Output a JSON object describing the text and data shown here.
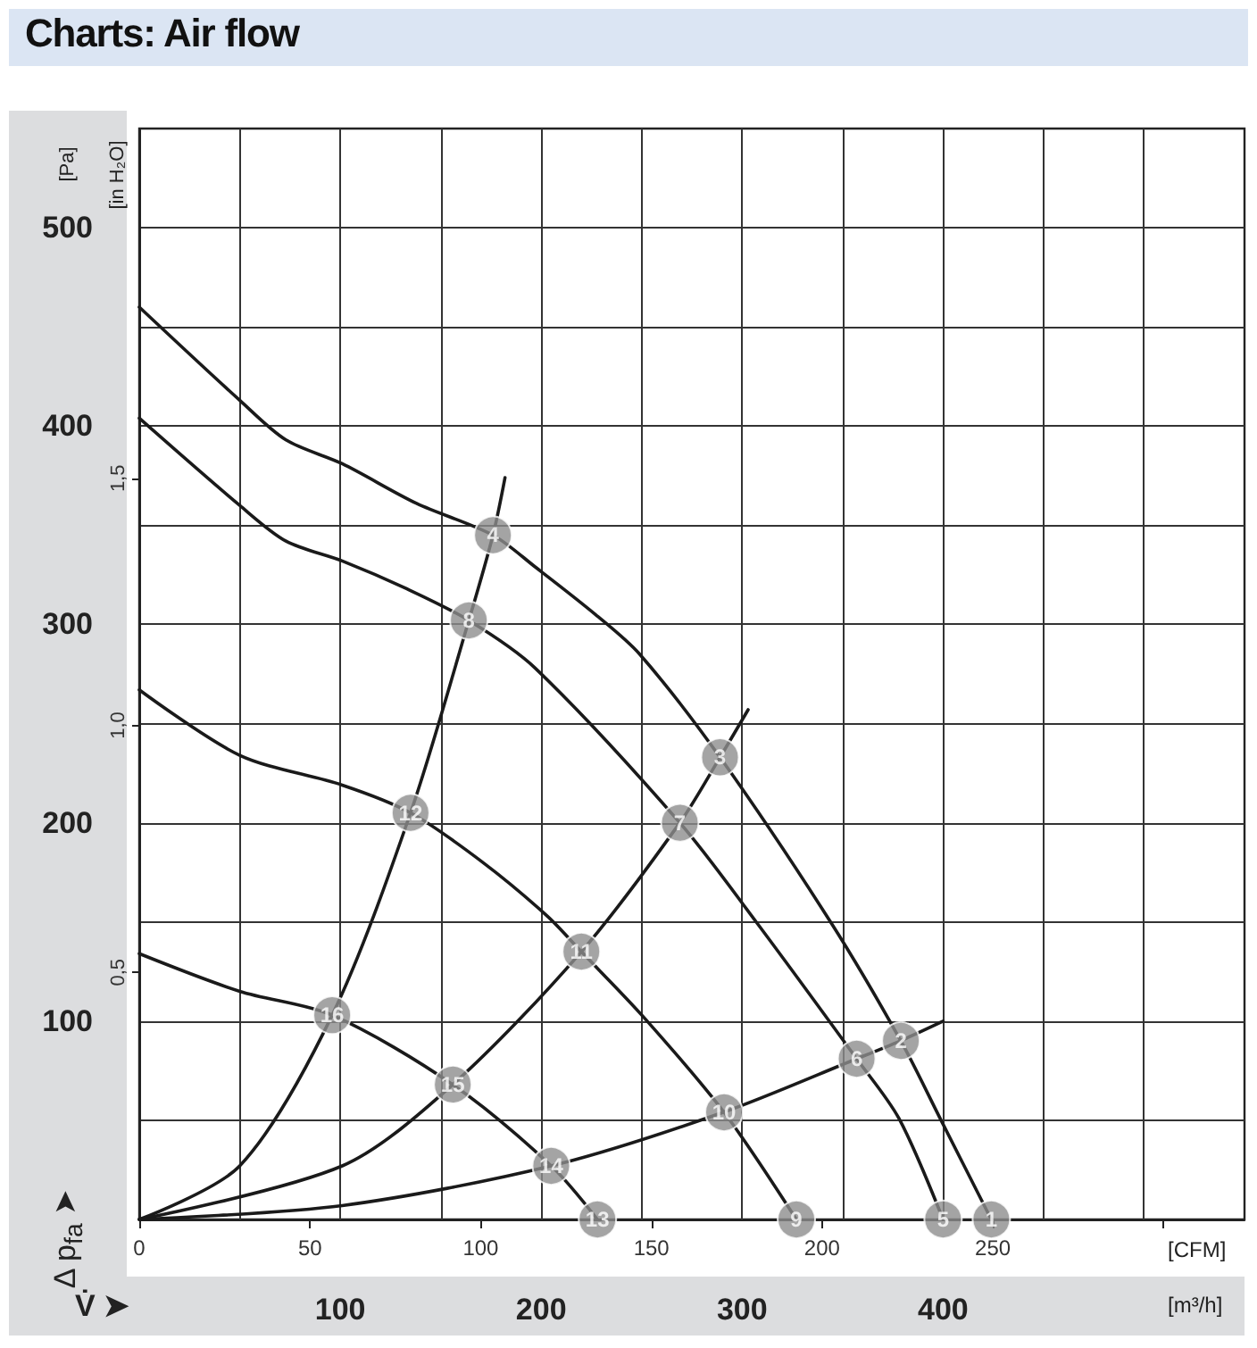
{
  "chart_data": {
    "type": "line",
    "title": "Charts: Air flow",
    "xlabel": "[m³/h]",
    "x2label": "[CFM]",
    "ylabel": "[Pa]",
    "y2label": "[in H₂O]",
    "xlim": [
      0,
      550
    ],
    "xticks": [
      {
        "value": 50,
        "label": null
      },
      100,
      {
        "value": 150,
        "label": null
      },
      200,
      {
        "value": 250,
        "label": null
      },
      300,
      {
        "value": 350,
        "label": null
      },
      400,
      {
        "value": 450,
        "label": null
      },
      {
        "value": 500,
        "label": null
      }
    ],
    "x2lim": [
      0,
      323.7
    ],
    "x2ticks": [
      0,
      50,
      100,
      150,
      200,
      250,
      {
        "value": 300,
        "label": null
      }
    ],
    "ylim": [
      0,
      550
    ],
    "yticks": [
      {
        "value": 50,
        "label": null
      },
      100,
      {
        "value": 150,
        "label": null
      },
      200,
      {
        "value": 250,
        "label": null
      },
      300,
      {
        "value": 350,
        "label": null
      },
      400,
      {
        "value": 450,
        "label": null
      },
      500
    ],
    "y2lim": [
      0,
      2.208
    ],
    "y2ticks": [
      {
        "value": 0.5,
        "label": "0,5"
      },
      {
        "value": 1.0,
        "label": "1,0"
      },
      {
        "value": 1.5,
        "label": "1,5"
      }
    ],
    "grid": true,
    "line_style": "solid",
    "series": [
      {
        "color": "#1a1a1a",
        "x": [
          0,
          50,
          73,
          101,
          138,
          176,
          197,
          227,
          249,
          289,
          344,
          379,
          399,
          424
        ],
        "values": [
          460,
          413,
          393,
          381,
          361,
          345,
          329,
          305,
          285,
          233,
          150,
          90,
          50,
          0
        ]
      },
      {
        "color": "#1a1a1a",
        "x": [
          0,
          50,
          73,
          101,
          133,
          164,
          197,
          269,
          307,
          357,
          378,
          400
        ],
        "values": [
          404,
          360,
          342,
          332,
          318,
          302,
          278,
          200,
          150,
          81,
          51,
          0
        ]
      },
      {
        "color": "#1a1a1a",
        "x": [
          0,
          50,
          101,
          135,
          171,
          203,
          220,
          251,
          291,
          327
        ],
        "values": [
          267,
          234,
          219,
          205,
          180,
          153,
          135,
          102,
          54,
          0
        ]
      },
      {
        "color": "#1a1a1a",
        "x": [
          0,
          50,
          96,
          156,
          205,
          228
        ],
        "values": [
          134,
          115,
          103,
          68,
          27,
          0
        ]
      },
      {
        "color": "#1a1a1a",
        "x": [
          0,
          50,
          96,
          135,
          164,
          176,
          182
        ],
        "values": [
          0,
          27,
          103,
          205,
          302,
          345,
          374
        ]
      },
      {
        "color": "#1a1a1a",
        "x": [
          0,
          101,
          156,
          220,
          269,
          289,
          303
        ],
        "values": [
          0,
          27,
          68,
          135,
          200,
          233,
          257
        ]
      },
      {
        "color": "#1a1a1a",
        "x": [
          0,
          101,
          205,
          290.6,
          357,
          378.6,
          400
        ],
        "values": [
          0,
          7,
          27,
          54,
          81,
          90,
          100
        ]
      }
    ],
    "annotations": [
      {
        "text": "1",
        "x": 424,
        "y": 0
      },
      {
        "text": "2",
        "x": 379,
        "y": 90
      },
      {
        "text": "3",
        "x": 289,
        "y": 233
      },
      {
        "text": "4",
        "x": 176,
        "y": 345
      },
      {
        "text": "5",
        "x": 400,
        "y": 0
      },
      {
        "text": "6",
        "x": 357,
        "y": 81
      },
      {
        "text": "7",
        "x": 269,
        "y": 200
      },
      {
        "text": "8",
        "x": 164,
        "y": 302
      },
      {
        "text": "9",
        "x": 327,
        "y": 0
      },
      {
        "text": "10",
        "x": 291,
        "y": 54
      },
      {
        "text": "11",
        "x": 220,
        "y": 135
      },
      {
        "text": "12",
        "x": 135,
        "y": 205
      },
      {
        "text": "13",
        "x": 228,
        "y": 0
      },
      {
        "text": "14",
        "x": 205,
        "y": 27
      },
      {
        "text": "15",
        "x": 156,
        "y": 68
      },
      {
        "text": "16",
        "x": 96,
        "y": 103
      },
      "Δ p$_{fa}$ ➤",
      "V̇ ➤"
    ]
  }
}
